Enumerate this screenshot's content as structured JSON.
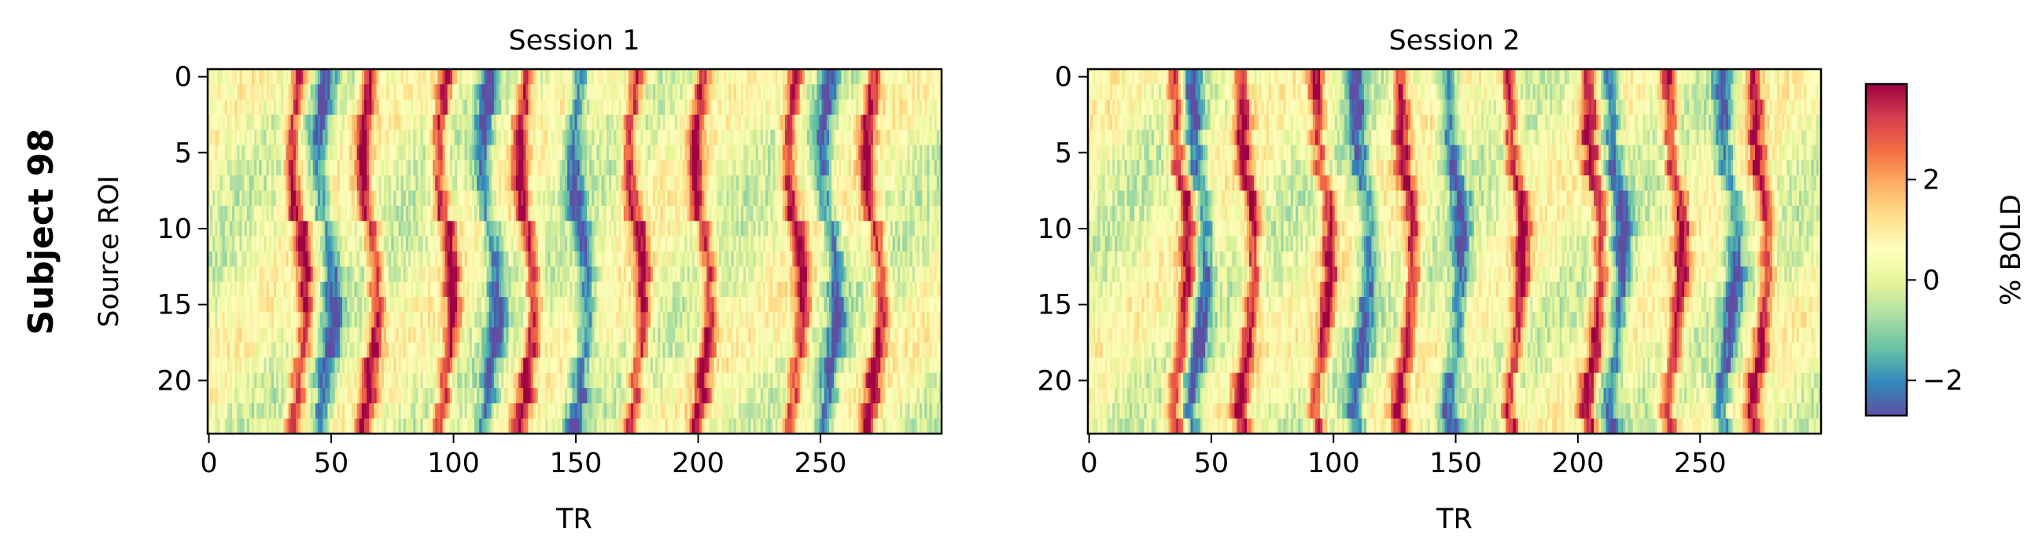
{
  "figure": {
    "row_label": "Subject 98"
  },
  "colorbar": {
    "label": "% BOLD",
    "colormap": "Spectral_r",
    "range": [
      -2.7,
      3.9
    ],
    "ticks": [
      -2,
      0,
      2
    ],
    "tick_labels": [
      "−2",
      "0",
      "2"
    ],
    "colors": [
      "#5e4fa2",
      "#3288bd",
      "#66c2a5",
      "#abdda4",
      "#e6f598",
      "#ffffbf",
      "#fee08b",
      "#fdae61",
      "#f46d43",
      "#d53e4f",
      "#9e0142"
    ]
  },
  "chart_data": [
    {
      "type": "heatmap",
      "title": "Session 1",
      "xlabel": "TR",
      "ylabel": "Source ROI",
      "x_range": [
        0,
        299
      ],
      "y_range": [
        0,
        23
      ],
      "y_inverted": true,
      "xticks": [
        0,
        50,
        100,
        150,
        200,
        250
      ],
      "yticks": [
        0,
        5,
        10,
        15,
        20
      ],
      "n_rows": 24,
      "n_cols": 300,
      "value_range": [
        -2.7,
        3.9
      ],
      "peak_TRs": [
        37,
        66,
        97,
        130,
        175,
        202,
        240,
        272
      ],
      "trough_TRs": [
        48,
        115,
        152,
        254
      ]
    },
    {
      "type": "heatmap",
      "title": "Session 2",
      "xlabel": "TR",
      "ylabel": "",
      "x_range": [
        0,
        299
      ],
      "y_range": [
        0,
        23
      ],
      "y_inverted": true,
      "xticks": [
        0,
        50,
        100,
        150,
        200,
        250
      ],
      "yticks": [
        0,
        5,
        10,
        15,
        20
      ],
      "n_rows": 24,
      "n_cols": 300,
      "value_range": [
        -2.7,
        3.9
      ],
      "peak_TRs": [
        38,
        65,
        96,
        130,
        175,
        207,
        240,
        275
      ],
      "trough_TRs": [
        45,
        112,
        150,
        216,
        262
      ]
    }
  ]
}
